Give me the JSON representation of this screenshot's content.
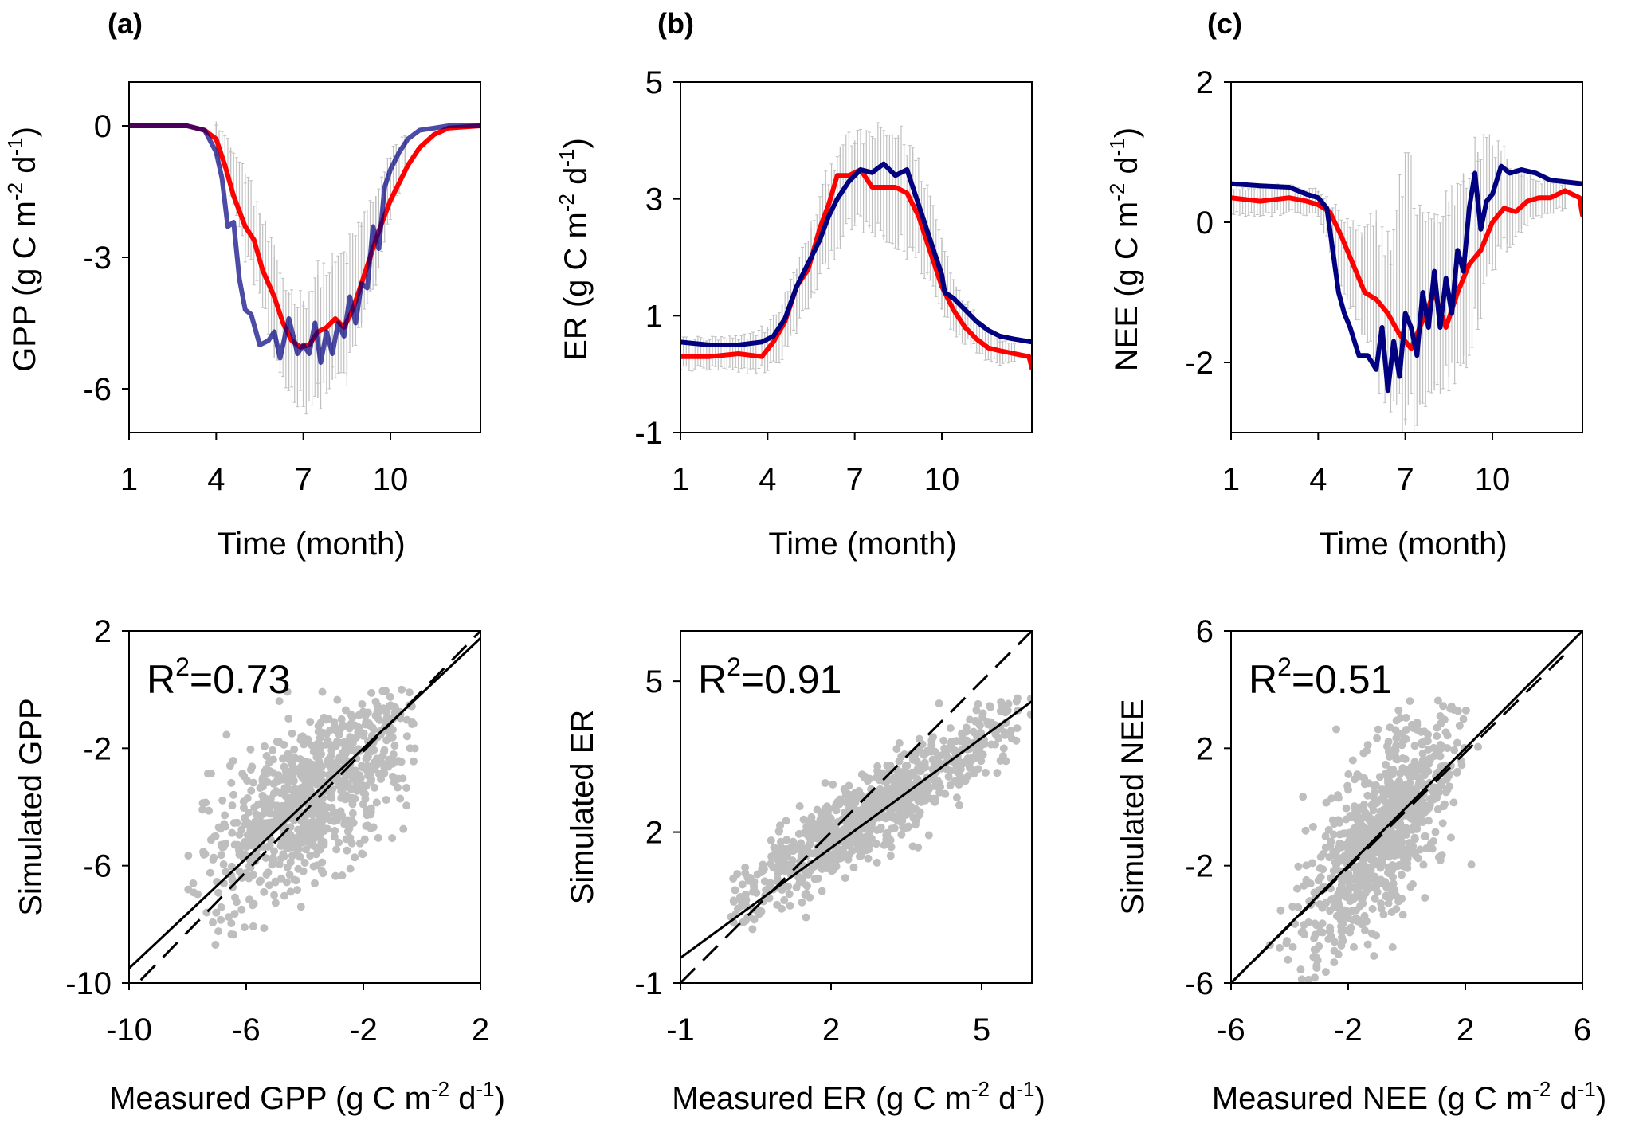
{
  "figure": {
    "panel_labels": [
      "(a)",
      "(b)",
      "(c)"
    ]
  },
  "colors": {
    "measured": "#FF0000",
    "simulated": "#000080",
    "errorbar": "#C0C0C0",
    "scatter": "#BEBEBE",
    "axis": "#000000"
  },
  "chart_data": [
    {
      "id": "a-top",
      "type": "line",
      "panel": "(a)",
      "xlabel": "Time (month)",
      "ylabel": "GPP (g C m-2 d-1)",
      "ylabel_parts": {
        "main": "GPP (g C m",
        "sup1": "-2",
        "mid": " d",
        "sup2": "-1",
        "end": ")"
      },
      "xlim": [
        1,
        13.1
      ],
      "ylim": [
        -7,
        1
      ],
      "xticks": [
        1,
        4,
        7,
        10
      ],
      "yticks": [
        0,
        -3,
        -6
      ],
      "series": [
        {
          "name": "measured",
          "color": "red",
          "x": [
            1,
            2,
            3,
            3.6,
            4,
            4.3,
            4.6,
            5,
            5.3,
            5.6,
            6,
            6.3,
            6.6,
            6.9,
            7.2,
            7.5,
            7.8,
            8.1,
            8.4,
            8.7,
            9,
            9.3,
            9.6,
            10,
            10.3,
            10.6,
            11,
            11.5,
            12,
            13.1
          ],
          "y": [
            0,
            0,
            0,
            -0.1,
            -0.3,
            -0.9,
            -1.6,
            -2.3,
            -2.6,
            -3.3,
            -3.9,
            -4.5,
            -4.9,
            -5.05,
            -5.0,
            -4.7,
            -4.6,
            -4.4,
            -4.6,
            -4.2,
            -3.6,
            -3.0,
            -2.4,
            -1.7,
            -1.3,
            -0.9,
            -0.5,
            -0.2,
            -0.05,
            0
          ]
        },
        {
          "name": "simulated",
          "color": "navy",
          "x": [
            1,
            2,
            3,
            3.6,
            4,
            4.2,
            4.4,
            4.6,
            4.8,
            5,
            5.2,
            5.5,
            5.8,
            6,
            6.2,
            6.5,
            6.8,
            7,
            7.2,
            7.4,
            7.6,
            7.8,
            8,
            8.2,
            8.4,
            8.6,
            8.8,
            9,
            9.2,
            9.4,
            9.6,
            9.8,
            10,
            10.3,
            10.6,
            11,
            11.5,
            12,
            13.1
          ],
          "y": [
            0,
            0,
            0,
            -0.1,
            -0.6,
            -1.2,
            -2.3,
            -2.2,
            -3.5,
            -4.2,
            -4.3,
            -5.0,
            -4.9,
            -4.7,
            -5.3,
            -4.4,
            -5.2,
            -5.0,
            -5.2,
            -4.5,
            -5.4,
            -4.7,
            -5.2,
            -4.5,
            -4.8,
            -3.9,
            -4.5,
            -3.6,
            -3.7,
            -2.3,
            -2.8,
            -1.4,
            -1.0,
            -0.6,
            -0.3,
            -0.1,
            -0.05,
            0,
            0
          ]
        },
        {
          "name": "errorbars",
          "color": "gray",
          "x": [
            4,
            4.5,
            5,
            5.5,
            6,
            6.5,
            7,
            7.5,
            8,
            8.5,
            9,
            9.5,
            10,
            10.5
          ],
          "y_low": [
            -0.6,
            -1.5,
            -2.9,
            -3.8,
            -5.3,
            -6.0,
            -6.3,
            -6.2,
            -5.8,
            -5.7,
            -4.5,
            -3.5,
            -2.1,
            -1.0
          ],
          "y_high": [
            0.1,
            -0.5,
            -1.1,
            -2.0,
            -3.0,
            -3.8,
            -4.0,
            -3.4,
            -3.2,
            -2.9,
            -2.2,
            -1.6,
            -0.7,
            -0.2
          ]
        }
      ]
    },
    {
      "id": "b-top",
      "type": "line",
      "panel": "(b)",
      "xlabel": "Time (month)",
      "ylabel": "ER (g C m-2 d-1)",
      "ylabel_parts": {
        "main": "ER (g C m",
        "sup1": "-2",
        "mid": " d",
        "sup2": "-1",
        "end": ")"
      },
      "xlim": [
        1,
        13.1
      ],
      "ylim": [
        -1,
        5
      ],
      "xticks": [
        1,
        4,
        7,
        10
      ],
      "yticks": [
        5,
        3,
        1,
        -1
      ],
      "series": [
        {
          "name": "measured",
          "color": "red",
          "x": [
            1,
            2,
            3,
            3.8,
            4.2,
            4.6,
            5,
            5.4,
            5.8,
            6.1,
            6.4,
            6.8,
            7.2,
            7.6,
            8,
            8.4,
            8.8,
            9.2,
            9.6,
            10,
            10.4,
            10.8,
            11.2,
            11.6,
            12,
            12.5,
            13,
            13.1
          ],
          "y": [
            0.3,
            0.3,
            0.35,
            0.3,
            0.55,
            0.9,
            1.5,
            1.8,
            2.5,
            2.9,
            3.4,
            3.4,
            3.5,
            3.2,
            3.2,
            3.2,
            3.1,
            2.7,
            2.1,
            1.5,
            1.1,
            0.8,
            0.6,
            0.45,
            0.4,
            0.35,
            0.3,
            0.1
          ]
        },
        {
          "name": "simulated",
          "color": "navy",
          "x": [
            1,
            2,
            3,
            3.8,
            4.2,
            4.6,
            5,
            5.4,
            5.8,
            6.1,
            6.4,
            6.8,
            7.2,
            7.6,
            8,
            8.4,
            8.8,
            9.2,
            9.6,
            10,
            10.1,
            10.4,
            10.8,
            11.2,
            11.6,
            12,
            12.5,
            13.1
          ],
          "y": [
            0.55,
            0.5,
            0.5,
            0.55,
            0.65,
            0.95,
            1.5,
            1.9,
            2.3,
            2.7,
            3.0,
            3.3,
            3.5,
            3.45,
            3.6,
            3.4,
            3.5,
            2.9,
            2.3,
            1.7,
            1.4,
            1.3,
            1.1,
            0.9,
            0.75,
            0.65,
            0.6,
            0.55
          ]
        },
        {
          "name": "errorbars",
          "color": "gray",
          "x": [
            1,
            2,
            3,
            4,
            4.5,
            5,
            5.5,
            6,
            6.5,
            7,
            7.5,
            8,
            8.5,
            9,
            9.5,
            10,
            10.5,
            11,
            11.5,
            12,
            12.5
          ],
          "y_low": [
            0.1,
            0.1,
            0.05,
            0.1,
            0.3,
            0.8,
            1.3,
            1.9,
            2.3,
            2.6,
            2.5,
            2.3,
            2.2,
            2.1,
            1.7,
            1.1,
            0.7,
            0.5,
            0.3,
            0.2,
            0.2
          ],
          "y_high": [
            0.6,
            0.6,
            0.6,
            0.8,
            1.2,
            1.8,
            2.5,
            3.3,
            3.9,
            4.0,
            4.1,
            4.1,
            4.1,
            3.8,
            3.2,
            2.3,
            1.5,
            1.1,
            0.8,
            0.6,
            0.5
          ]
        }
      ]
    },
    {
      "id": "c-top",
      "type": "line",
      "panel": "(c)",
      "xlabel": "Time (month)",
      "ylabel": "NEE (g C m-2 d-1)",
      "ylabel_parts": {
        "main": "NEE (g C m",
        "sup1": "-2",
        "mid": " d",
        "sup2": "-1",
        "end": ")"
      },
      "xlim": [
        1,
        13.1
      ],
      "ylim": [
        -3,
        2
      ],
      "xticks": [
        1,
        4,
        7,
        10
      ],
      "yticks": [
        2,
        0,
        -2
      ],
      "series": [
        {
          "name": "measured",
          "color": "red",
          "x": [
            1,
            2,
            3,
            3.6,
            4,
            4.4,
            4.8,
            5.2,
            5.6,
            6,
            6.4,
            6.8,
            7.2,
            7.6,
            8,
            8.4,
            8.8,
            9.2,
            9.6,
            10,
            10.4,
            10.8,
            11.2,
            11.6,
            12,
            12.5,
            13,
            13.1
          ],
          "y": [
            0.35,
            0.3,
            0.35,
            0.3,
            0.25,
            0.15,
            -0.2,
            -0.6,
            -1.0,
            -1.1,
            -1.3,
            -1.6,
            -1.8,
            -1.4,
            -1.0,
            -1.5,
            -1.0,
            -0.6,
            -0.4,
            0.0,
            0.2,
            0.15,
            0.3,
            0.35,
            0.35,
            0.45,
            0.35,
            0.1
          ]
        },
        {
          "name": "simulated",
          "color": "navy",
          "x": [
            1,
            2,
            3,
            3.6,
            4,
            4.3,
            4.5,
            4.7,
            4.9,
            5.1,
            5.4,
            5.7,
            6,
            6.2,
            6.4,
            6.6,
            6.8,
            7,
            7.2,
            7.4,
            7.6,
            7.8,
            8,
            8.2,
            8.4,
            8.6,
            8.8,
            9,
            9.2,
            9.4,
            9.6,
            9.8,
            10,
            10.3,
            10.6,
            11,
            11.5,
            12,
            13.1
          ],
          "y": [
            0.55,
            0.52,
            0.5,
            0.4,
            0.35,
            0.2,
            -0.4,
            -1.0,
            -1.3,
            -1.5,
            -1.9,
            -1.9,
            -2.1,
            -1.5,
            -2.4,
            -1.7,
            -2.2,
            -1.3,
            -1.5,
            -1.9,
            -1.0,
            -1.5,
            -0.7,
            -1.5,
            -0.8,
            -1.3,
            -0.4,
            -0.7,
            0.2,
            0.7,
            -0.1,
            0.3,
            0.4,
            0.8,
            0.7,
            0.75,
            0.7,
            0.6,
            0.55
          ]
        },
        {
          "name": "errorbars",
          "color": "gray",
          "x": [
            1,
            2,
            3,
            4,
            4.5,
            5,
            5.5,
            6,
            6.5,
            7,
            7.5,
            8,
            8.5,
            9,
            9.5,
            10,
            10.5,
            11,
            11.5,
            12,
            12.5
          ],
          "y_low": [
            0.15,
            0.1,
            0.15,
            0.1,
            -0.5,
            -1.1,
            -1.6,
            -2.1,
            -2.5,
            -2.9,
            -2.6,
            -2.4,
            -2.2,
            -1.9,
            -1.4,
            -0.6,
            -0.3,
            -0.1,
            0.1,
            0.15,
            0.2
          ],
          "y_high": [
            0.5,
            0.5,
            0.5,
            0.45,
            0.2,
            0.0,
            -0.2,
            0.0,
            -0.4,
            0.9,
            0.2,
            0.0,
            0.3,
            0.7,
            1.0,
            1.1,
            0.9,
            0.7,
            0.6,
            0.6,
            0.55
          ]
        }
      ]
    },
    {
      "id": "a-bottom",
      "type": "scatter",
      "panel": "(a)",
      "xlabel": "Measured GPP (g C m-2 d-1)",
      "xlabel_parts": {
        "main": "Measured GPP (g C m",
        "sup1": "-2",
        "mid": " d",
        "sup2": "-1",
        "end": ")"
      },
      "ylabel": "Simulated GPP",
      "xlim": [
        -10,
        2
      ],
      "ylim": [
        -10,
        2
      ],
      "xticks": [
        -10,
        -6,
        -2,
        2
      ],
      "yticks": [
        2,
        -2,
        -6,
        -10
      ],
      "annotation": {
        "label": "R",
        "sup": "2",
        "value": "=0.73",
        "r2": 0.73
      },
      "regression_line": {
        "x": [
          -10,
          2
        ],
        "y": [
          -9.5,
          1.75
        ]
      },
      "one_to_one_line": {
        "x": [
          -9.6,
          2
        ],
        "y": [
          -9.9,
          2
        ]
      },
      "cloud": {
        "center": [
          -3.8,
          -3.6
        ],
        "spread": [
          1.9,
          1.9
        ],
        "corr": 0.7,
        "n": 900,
        "clip_x": [
          -8,
          -0.2
        ],
        "clip_y": [
          -8.8,
          -0.0
        ]
      }
    },
    {
      "id": "b-bottom",
      "type": "scatter",
      "panel": "(b)",
      "xlabel": "Measured ER (g C m-2 d-1)",
      "xlabel_parts": {
        "main": "Measured ER (g C m",
        "sup1": "-2",
        "mid": " d",
        "sup2": "-1",
        "end": ")"
      },
      "ylabel": "Simulated ER",
      "xlim": [
        -1,
        6
      ],
      "ylim": [
        -1,
        6
      ],
      "xticks": [
        -1,
        2,
        5
      ],
      "yticks": [
        5,
        2,
        -1
      ],
      "annotation": {
        "label": "R",
        "sup": "2",
        "value": "=0.91",
        "r2": 0.91
      },
      "regression_line": {
        "x": [
          -1,
          6
        ],
        "y": [
          -0.5,
          4.6
        ]
      },
      "one_to_one_line": {
        "x": [
          -1,
          6
        ],
        "y": [
          -1,
          6
        ]
      },
      "cloud": {
        "center": [
          2.8,
          2.4
        ],
        "spread": [
          1.6,
          1.1
        ],
        "corr": 0.93,
        "n": 900,
        "clip_x": [
          0,
          6
        ],
        "clip_y": [
          -0.3,
          4.7
        ]
      }
    },
    {
      "id": "c-bottom",
      "type": "scatter",
      "panel": "(c)",
      "xlabel": "Measured NEE (g C m-2 d-1)",
      "xlabel_parts": {
        "main": "Measured NEE (g C m",
        "sup1": "-2",
        "mid": " d",
        "sup2": "-1",
        "end": ")"
      },
      "ylabel": "Simulated NEE",
      "xlim": [
        -6,
        6
      ],
      "ylim": [
        -6,
        6
      ],
      "xticks": [
        -6,
        -2,
        2,
        6
      ],
      "yticks": [
        6,
        2,
        -2,
        -6
      ],
      "annotation": {
        "label": "R",
        "sup": "2",
        "value": "=0.51",
        "r2": 0.51
      },
      "regression_line": {
        "x": [
          -6,
          6
        ],
        "y": [
          -6,
          6
        ]
      },
      "one_to_one_line": {
        "x": [
          -6,
          5.6
        ],
        "y": [
          -6,
          5.4
        ]
      },
      "cloud": {
        "center": [
          -0.9,
          -0.9
        ],
        "spread": [
          1.3,
          2.0
        ],
        "corr": 0.7,
        "n": 900,
        "clip_x": [
          -5.5,
          3.5
        ],
        "clip_y": [
          -5.9,
          3.7
        ]
      }
    }
  ]
}
